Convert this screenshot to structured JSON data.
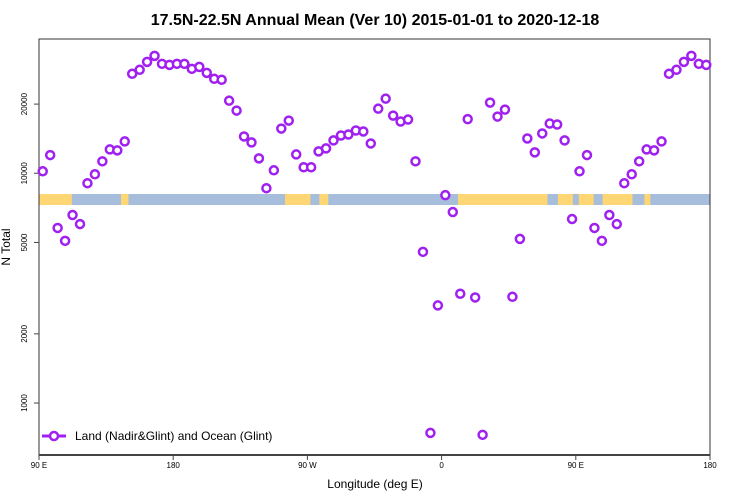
{
  "chart_data": {
    "type": "scatter",
    "title": "17.5N-22.5N Annual Mean (Ver 10)   2015-01-01 to 2020-12-18",
    "xlabel": "Longitude (deg E)",
    "ylabel": "N Total",
    "y_scale": "log",
    "ylim": [
      594,
      38400
    ],
    "xlim_deg_east": [
      90,
      540
    ],
    "x_ticks": [
      "90 E",
      "180",
      "90 W",
      "0",
      "90 E",
      "180"
    ],
    "y_ticks": [
      "1000",
      "2000",
      "5000",
      "10000",
      "20000"
    ],
    "grid": false,
    "legend_position": "bottom-left",
    "series": [
      {
        "name": "Land (Nadir&Glint) and Ocean (Glint)",
        "color": "#a020f0",
        "marker": "open-circle",
        "x": [
          92.5,
          97.5,
          102.5,
          107.5,
          112.5,
          117.5,
          122.5,
          127.5,
          132.5,
          137.5,
          142.5,
          147.5,
          152.5,
          157.5,
          162.5,
          167.5,
          172.5,
          177.5,
          -177.5,
          -172.5,
          -167.5,
          -162.5,
          -157.5,
          -152.5,
          -147.5,
          -142.5,
          -137.5,
          -132.5,
          -127.5,
          -122.5,
          -117.5,
          -112.5,
          -107.5,
          -102.5,
          -97.5,
          -92.5,
          -87.5,
          -82.5,
          -77.5,
          -72.5,
          -67.5,
          -62.5,
          -57.5,
          -52.5,
          -47.5,
          -42.5,
          -37.5,
          -32.5,
          -27.5,
          -22.5,
          -17.5,
          -12.5,
          -7.5,
          -2.5,
          2.5,
          7.5,
          12.5,
          17.5,
          22.5,
          27.5,
          32.5,
          37.5,
          42.5,
          47.5,
          52.5,
          57.5,
          62.5,
          67.5,
          72.5,
          77.5,
          82.5,
          87.5,
          92.5,
          97.5,
          102.5,
          107.5,
          112.5,
          117.5,
          122.5,
          127.5,
          132.5,
          137.5,
          142.5,
          147.5,
          152.5,
          157.5,
          162.5,
          167.5,
          172.5,
          177.5
        ],
        "y": [
          10200,
          12000,
          5780,
          5080,
          6580,
          6010,
          9050,
          9900,
          11270,
          12700,
          12580,
          13760,
          27100,
          28200,
          30540,
          32430,
          29940,
          29630,
          29940,
          29940,
          28480,
          29040,
          27350,
          25770,
          25520,
          20700,
          18740,
          14460,
          13620,
          11610,
          8610,
          10300,
          15650,
          16950,
          12080,
          10620,
          10620,
          12450,
          12830,
          13900,
          14600,
          14750,
          15350,
          15200,
          13480,
          19100,
          21120,
          17820,
          16790,
          17130,
          11270,
          4550,
          741,
          2660,
          8030,
          6780,
          2990,
          17200,
          2880,
          727,
          20300,
          17650,
          18920,
          2900,
          5180,
          14170,
          12330,
          14900,
          16460,
          16300,
          13900,
          6320,
          10200,
          12000,
          5780,
          5080,
          6580,
          6010,
          9050,
          9900,
          11270,
          12700,
          12580,
          13760,
          27100,
          28200,
          30540,
          32430,
          29940,
          29630
        ]
      }
    ],
    "land_color": "#fed673",
    "ocean_color": "#a6bddb"
  }
}
